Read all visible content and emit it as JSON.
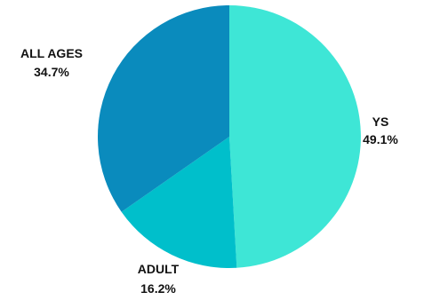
{
  "chart_data": {
    "type": "pie",
    "title": "",
    "slices": [
      {
        "name": "YS",
        "value": 49.1,
        "value_label": "49.1%",
        "color": "#3ee6d6"
      },
      {
        "name": "ADULT",
        "value": 16.2,
        "value_label": "16.2%",
        "color": "#00bfcb"
      },
      {
        "name": "ALL AGES",
        "value": 34.7,
        "value_label": "34.7%",
        "color": "#0a8bbd"
      }
    ],
    "start_angle_deg": 0,
    "direction": "clockwise",
    "legend": "none",
    "labels": "outside"
  }
}
